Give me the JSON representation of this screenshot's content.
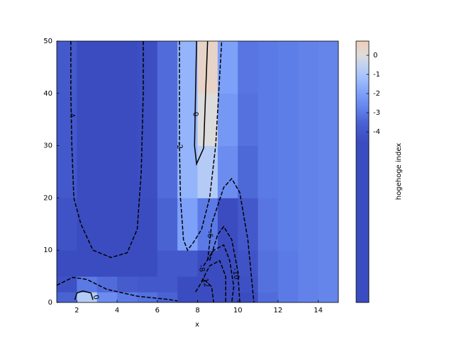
{
  "chart_data": {
    "type": "contour",
    "xlabel": "x",
    "colorbar_label": "hogehoge index",
    "xlim": [
      1,
      15
    ],
    "ylim": [
      0,
      50
    ],
    "xticks": [
      2,
      4,
      6,
      8,
      10,
      12,
      14
    ],
    "yticks": [
      0,
      10,
      20,
      30,
      40,
      50
    ],
    "colorbar_lim": [
      -12.9,
      0.74
    ],
    "colorbar_ticks": [
      0,
      -1,
      -2,
      -3,
      -4
    ],
    "colormap": [
      {
        "value": -4.5,
        "color": "#3b4cc0"
      },
      {
        "value": -3.5,
        "color": "#4a63d3"
      },
      {
        "value": -3,
        "color": "#5b7ae5"
      },
      {
        "value": -2,
        "color": "#7da0f9"
      },
      {
        "value": -1,
        "color": "#aac7fd"
      },
      {
        "value": 0,
        "color": "#dddcdc"
      },
      {
        "value": 0.74,
        "color": "#f2cbb7"
      }
    ],
    "x_edges": [
      1,
      2,
      3,
      4,
      5,
      6,
      7,
      8,
      9,
      10,
      11,
      12,
      13,
      14,
      15
    ],
    "y_edges": [
      0,
      2,
      5,
      10,
      20,
      30,
      40,
      50
    ],
    "z": [
      [
        -3.5,
        -0.8,
        -2.5,
        -3,
        -3.2,
        -3.5,
        -6,
        -12,
        -9,
        -4.5,
        -3.3,
        -3,
        -2.8,
        -2.7
      ],
      [
        -4.3,
        -3,
        -3.3,
        -3.8,
        -4,
        -4,
        -5,
        -10,
        -8,
        -4.3,
        -3.2,
        -3,
        -2.8,
        -2.7
      ],
      [
        -4.5,
        -4.5,
        -4.6,
        -4.6,
        -4.5,
        -4,
        -4,
        -7,
        -7,
        -4.2,
        -3.2,
        -3,
        -2.8,
        -2.7
      ],
      [
        -4.2,
        -4.6,
        -4.8,
        -4.8,
        -4.5,
        -3.5,
        -2,
        -3,
        -5,
        -4,
        -3.1,
        -2.9,
        -2.8,
        -2.7
      ],
      [
        -4,
        -4.6,
        -4.8,
        -4.8,
        -4.4,
        -3.3,
        -1.5,
        -0.8,
        -2.5,
        -3.4,
        -3,
        -2.9,
        -2.8,
        -2.7
      ],
      [
        -4,
        -4.5,
        -4.8,
        -4.8,
        -4.4,
        -3.3,
        -1.5,
        0,
        -2.2,
        -3.2,
        -3,
        -2.9,
        -2.8,
        -2.7
      ],
      [
        -3.9,
        -4.5,
        -4.8,
        -4.8,
        -4.4,
        -3.3,
        -1.5,
        0.4,
        -2,
        -3.1,
        -3,
        -2.9,
        -2.8,
        -2.7
      ]
    ],
    "contours": [
      {
        "level": -4,
        "x": [
          1.7,
          1.7,
          1.75,
          1.85,
          2.2,
          2.8,
          3.7,
          4.5,
          5,
          5.2,
          5.3,
          5.3
        ],
        "y": [
          50,
          40,
          30,
          20,
          15,
          10,
          8.6,
          9.5,
          14,
          25,
          40,
          50
        ]
      },
      {
        "level": -2,
        "x": [
          7.1,
          7.1,
          7.1,
          7.15,
          7.3,
          7.5,
          7.8,
          8.2,
          8.6,
          8.9,
          9.05,
          9.2
        ],
        "y": [
          50,
          40,
          30,
          20,
          12,
          10,
          11.5,
          14,
          20,
          30,
          40,
          50
        ]
      },
      {
        "level": 0,
        "x": [
          7.95,
          7.9,
          7.85,
          7.95,
          8.3,
          8.4,
          8.5
        ],
        "y": [
          50,
          40,
          30,
          26.5,
          29.5,
          40,
          50
        ]
      },
      {
        "level": -4,
        "x": [
          1,
          1.8,
          2.5,
          3.5,
          5,
          6.5,
          7
        ],
        "y": [
          3.3,
          4.8,
          4.4,
          2.5,
          1.2,
          0.6,
          0.3
        ]
      },
      {
        "level": 0,
        "x": [
          1.9,
          2,
          2.3,
          2.7,
          2.8
        ],
        "y": [
          0.5,
          1.8,
          2.2,
          1.8,
          0.5
        ]
      },
      {
        "level": -4,
        "x": [
          8.5,
          8.7,
          9.3,
          9.7,
          10.1,
          10.5,
          10.7,
          10.8
        ],
        "y": [
          8,
          15,
          22,
          23.7,
          21,
          12,
          4,
          0
        ]
      },
      {
        "level": -6,
        "x": [
          8.6,
          9,
          9.3,
          9.7,
          10,
          10.1
        ],
        "y": [
          8,
          13,
          14.5,
          12,
          6,
          0
        ]
      },
      {
        "level": -8,
        "x": [
          8.3,
          8.8,
          9.3,
          9.6,
          9.8,
          9.7
        ],
        "y": [
          7,
          10,
          11,
          8,
          3,
          0
        ]
      },
      {
        "level": -10,
        "x": [
          8.2,
          8.6,
          9.1,
          9.4,
          9.4
        ],
        "y": [
          4,
          7,
          8,
          5,
          0
        ]
      },
      {
        "level": -12,
        "x": [
          7.9,
          8.3,
          8.7,
          8.8
        ],
        "y": [
          2,
          4.5,
          3,
          0
        ]
      }
    ],
    "contour_labels": [
      {
        "value": -4,
        "x": 1.75,
        "y": 36
      },
      {
        "value": 0,
        "x": 7.9,
        "y": 36
      },
      {
        "value": -2,
        "x": 7.1,
        "y": 30
      },
      {
        "value": 0,
        "x": 2.95,
        "y": 1
      },
      {
        "value": -6,
        "x": 8.6,
        "y": 13
      },
      {
        "value": -8,
        "x": 8.2,
        "y": 6.5
      },
      {
        "value": -10,
        "x": 9.9,
        "y": 5.5
      },
      {
        "value": -12,
        "x": 8.4,
        "y": 4
      }
    ]
  }
}
